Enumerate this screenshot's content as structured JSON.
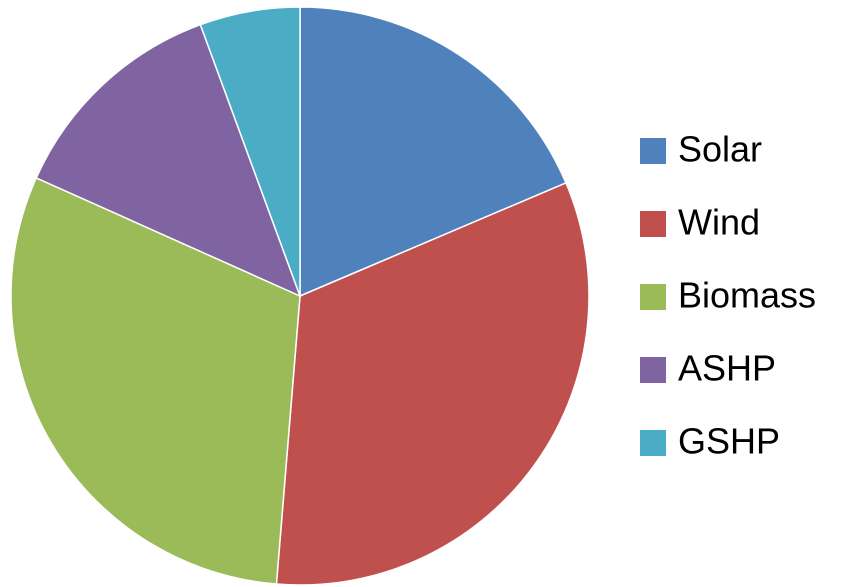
{
  "chart_data": {
    "type": "pie",
    "categories": [
      "Solar",
      "Wind",
      "Biomass",
      "ASHP",
      "GSHP"
    ],
    "values": [
      18.6,
      32.7,
      30.4,
      12.7,
      5.6
    ],
    "colors": [
      "#4f81bd",
      "#c0504d",
      "#9bbb59",
      "#8064a2",
      "#4bacc6"
    ],
    "legend": "right"
  }
}
